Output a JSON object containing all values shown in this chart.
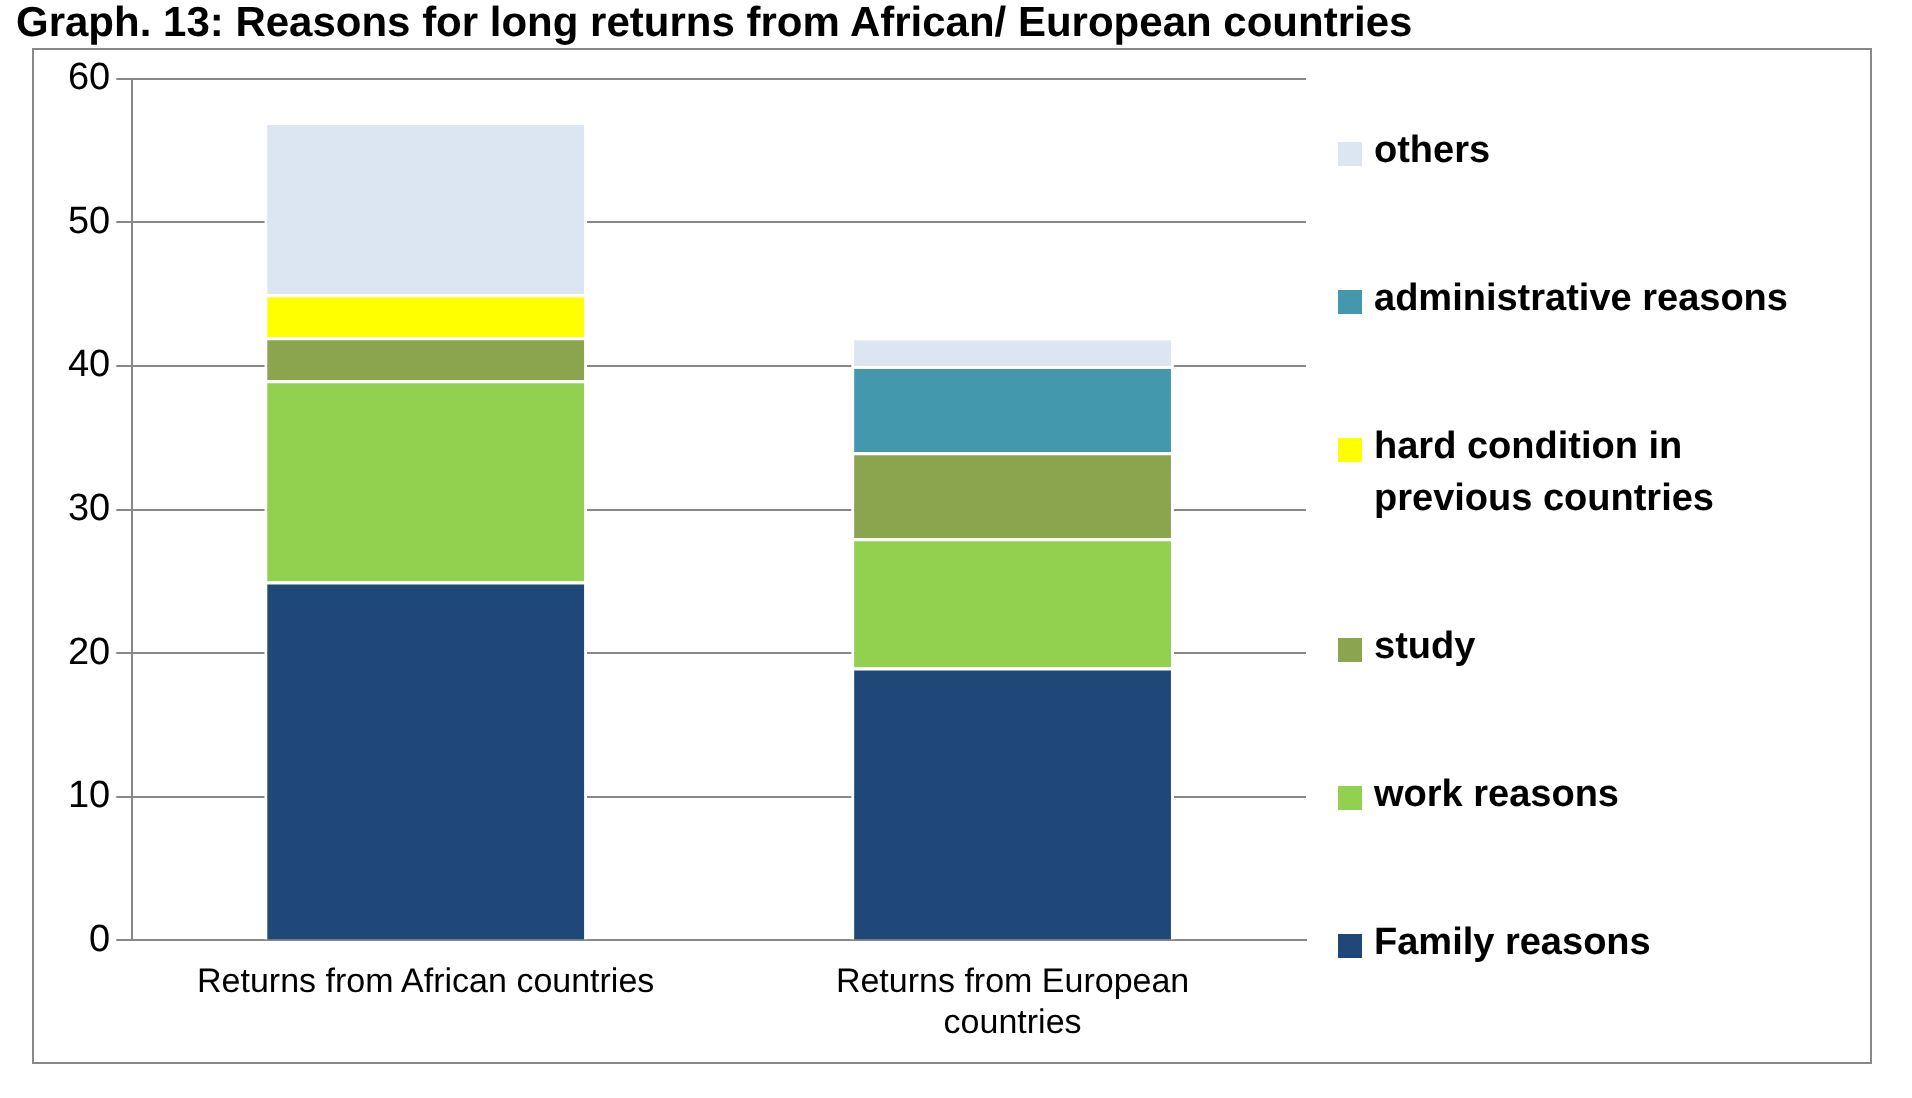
{
  "chart_data": {
    "type": "bar",
    "title": "Graph. 13: Reasons for long returns from African/ European countries",
    "categories": [
      "Returns from African countries",
      "Returns from European countries"
    ],
    "stacked": true,
    "ylim": [
      0,
      60
    ],
    "yticks": [
      0,
      10,
      20,
      30,
      40,
      50,
      60
    ],
    "grid": "y",
    "legend": "right",
    "series": [
      {
        "name": "Family reasons",
        "color": "#1f4879",
        "values": [
          25,
          19
        ]
      },
      {
        "name": "work reasons",
        "color": "#92d050",
        "values": [
          14,
          9
        ]
      },
      {
        "name": "study",
        "color": "#8aa54e",
        "values": [
          3,
          6
        ]
      },
      {
        "name": "hard condition in previous countries",
        "color": "#ffff00",
        "values": [
          3,
          0
        ]
      },
      {
        "name": "administrative reasons",
        "color": "#4398ae",
        "values": [
          0,
          6
        ]
      },
      {
        "name": "others",
        "color": "#dce6f2",
        "values": [
          12,
          2
        ]
      }
    ]
  }
}
